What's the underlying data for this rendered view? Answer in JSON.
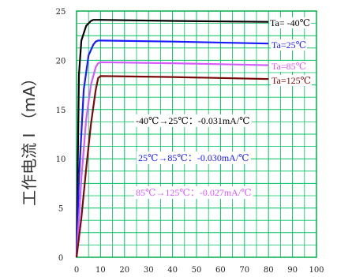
{
  "chart_data": {
    "type": "line",
    "ylabel": "工作电流 I （mA）",
    "xlim": [
      0,
      100
    ],
    "ylim": [
      0,
      25
    ],
    "xticks": [
      0,
      10,
      20,
      30,
      40,
      50,
      60,
      70,
      80,
      90,
      100
    ],
    "yticks": [
      0,
      5,
      10,
      15,
      20,
      25
    ],
    "grid": true,
    "series": [
      {
        "name": "Ta= -40℃",
        "color": "#000000",
        "x": [
          0,
          1,
          2,
          4,
          6,
          7,
          8,
          10,
          40,
          80
        ],
        "y": [
          0,
          18.5,
          22,
          23.5,
          24,
          24.1,
          24.1,
          24.1,
          24.0,
          23.9
        ]
      },
      {
        "name": "Ta=25℃",
        "color": "#1a1aff",
        "x": [
          0,
          1,
          3,
          5,
          7,
          8,
          9,
          10,
          40,
          80
        ],
        "y": [
          0,
          8,
          17,
          20.5,
          21.6,
          21.9,
          22,
          22,
          21.9,
          21.7
        ]
      },
      {
        "name": "Ta=85℃",
        "color": "#d45cff",
        "x": [
          0,
          2,
          4,
          6,
          8,
          9,
          10,
          40,
          80
        ],
        "y": [
          0,
          8,
          14,
          17.5,
          19.3,
          19.7,
          19.8,
          19.7,
          19.5
        ]
      },
      {
        "name": "Ta=125℃",
        "color": "#7a0a0a",
        "x": [
          0,
          2,
          4,
          6,
          8,
          9,
          10,
          40,
          80
        ],
        "y": [
          0,
          4,
          9,
          13.5,
          17,
          18.2,
          18.4,
          18.3,
          18.1
        ]
      }
    ],
    "annotations": [
      {
        "text": "-40℃→25℃：-0.031mA/℃",
        "color": "#000000"
      },
      {
        "text": "25℃→85℃：-0.030mA/℃",
        "color": "#1a1aff"
      },
      {
        "text": "85℃→125℃：-0.027mA/℃",
        "color": "#d45cff"
      }
    ],
    "axis_color": "#00b050",
    "grid_color": "#00c060"
  }
}
